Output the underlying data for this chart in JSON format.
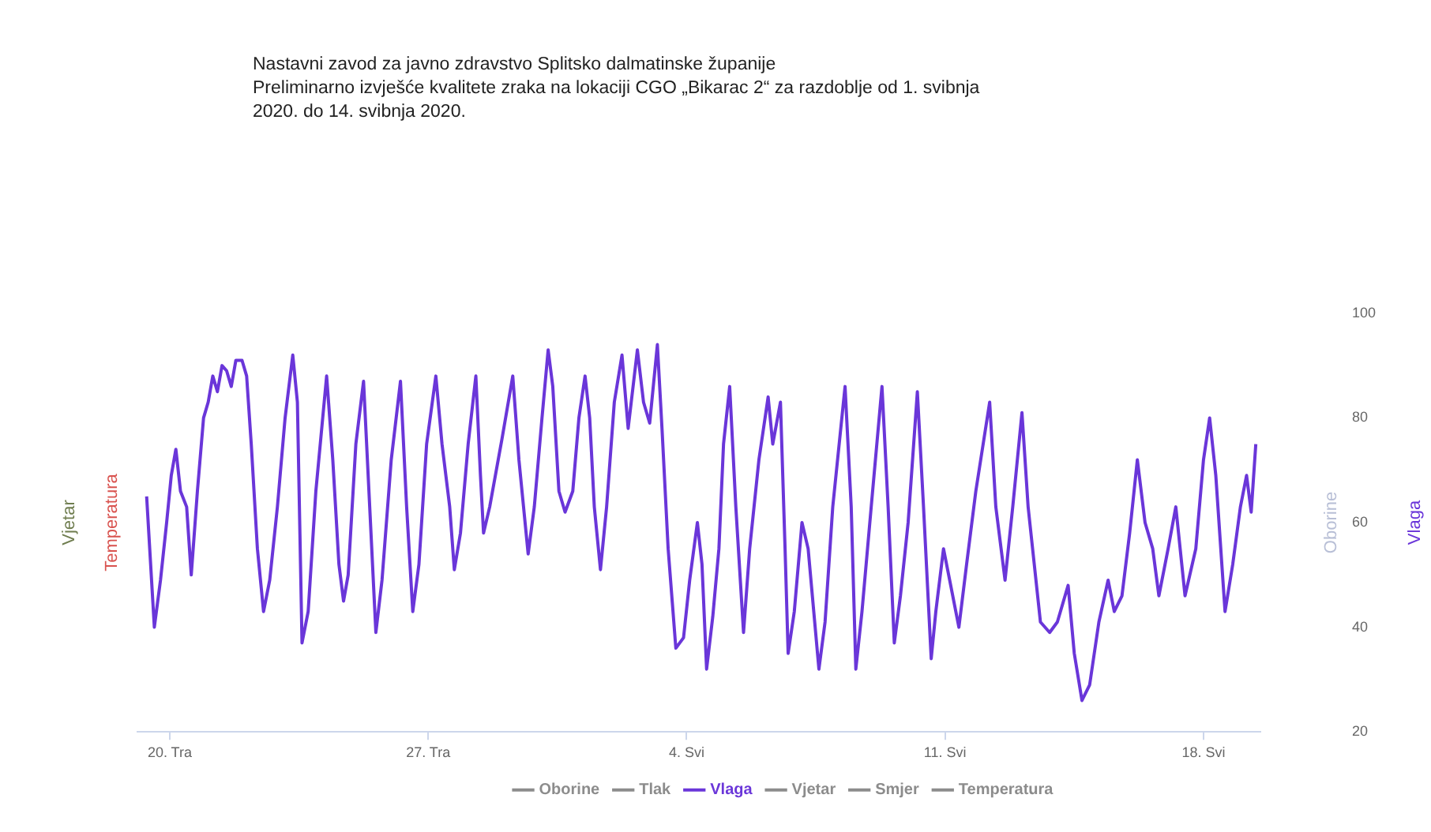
{
  "chart_data": {
    "type": "line",
    "title": "Nastavni zavod  za javno zdravstvo Splitsko dalmatinske županije",
    "subtitle": "Preliminarno izvješće kvalitete zraka na lokaciji CGO „Bikarac 2“  za razdoblje od  1. svibnja 2020. do 14. svibnja 2020.",
    "ylabel": "Temperatura",
    "y2label": "Vlaga",
    "annotations": [
      "Vjetar",
      "Oborine"
    ],
    "xlim": [
      "2020-04-19T03:00",
      "2020-05-19T13:00"
    ],
    "xticks": [
      {
        "value": "2020-04-20",
        "label": "20. Tra"
      },
      {
        "value": "2020-04-27",
        "label": "27. Tra"
      },
      {
        "value": "2020-05-04",
        "label": "4. Svi"
      },
      {
        "value": "2020-05-11",
        "label": "11. Svi"
      },
      {
        "value": "2020-05-18",
        "label": "18. Svi"
      }
    ],
    "y2lim": [
      20,
      100
    ],
    "y2ticks": [
      20,
      40,
      60,
      80,
      100
    ],
    "grid": false,
    "legend": "bottom",
    "marker": "none",
    "line_style": "solid",
    "series": [
      {
        "name": "Oborine",
        "color": "#8c8c8c"
      },
      {
        "name": "Tlak",
        "color": "#8c8c8c"
      },
      {
        "name": "Vlaga",
        "color": "#6a36d9",
        "axis": "y2",
        "x": [
          "2020-04-19T09:00",
          "2020-04-19T14:00",
          "2020-04-19T18:00",
          "2020-04-19T22:00",
          "2020-04-20T01:00",
          "2020-04-20T04:00",
          "2020-04-20T07:00",
          "2020-04-20T11:00",
          "2020-04-20T14:00",
          "2020-04-20T18:00",
          "2020-04-20T22:00",
          "2020-04-21T01:00",
          "2020-04-21T04:00",
          "2020-04-21T07:00",
          "2020-04-21T10:00",
          "2020-04-21T13:00",
          "2020-04-21T16:00",
          "2020-04-21T19:00",
          "2020-04-21T23:00",
          "2020-04-22T02:00",
          "2020-04-22T05:00",
          "2020-04-22T09:00",
          "2020-04-22T13:00",
          "2020-04-22T17:00",
          "2020-04-22T22:00",
          "2020-04-23T03:00",
          "2020-04-23T08:00",
          "2020-04-23T11:00",
          "2020-04-23T14:00",
          "2020-04-23T18:00",
          "2020-04-23T23:00",
          "2020-04-24T06:00",
          "2020-04-24T10:00",
          "2020-04-24T14:00",
          "2020-04-24T17:00",
          "2020-04-24T20:00",
          "2020-04-25T01:00",
          "2020-04-25T06:00",
          "2020-04-25T10:00",
          "2020-04-25T14:00",
          "2020-04-25T18:00",
          "2020-04-26T00:00",
          "2020-04-26T06:00",
          "2020-04-26T10:00",
          "2020-04-26T14:00",
          "2020-04-26T18:00",
          "2020-04-26T23:00",
          "2020-04-27T05:00",
          "2020-04-27T09:00",
          "2020-04-27T14:00",
          "2020-04-27T17:00",
          "2020-04-27T21:00",
          "2020-04-28T02:00",
          "2020-04-28T07:00",
          "2020-04-28T10:00",
          "2020-04-28T12:00",
          "2020-04-28T16:00",
          "2020-04-29T00:00",
          "2020-04-29T07:00",
          "2020-04-29T11:00",
          "2020-04-29T14:00",
          "2020-04-29T17:00",
          "2020-04-29T21:00",
          "2020-04-30T02:00",
          "2020-04-30T06:00",
          "2020-04-30T09:00",
          "2020-04-30T13:00",
          "2020-04-30T17:00",
          "2020-04-30T22:00",
          "2020-05-01T02:00",
          "2020-05-01T06:00",
          "2020-05-01T09:00",
          "2020-05-01T12:00",
          "2020-05-01T16:00",
          "2020-05-01T20:00",
          "2020-05-02T01:00",
          "2020-05-02T06:00",
          "2020-05-02T10:00",
          "2020-05-02T16:00",
          "2020-05-02T20:00",
          "2020-05-03T00:00",
          "2020-05-03T05:00",
          "2020-05-03T08:00",
          "2020-05-03T12:00",
          "2020-05-03T17:00",
          "2020-05-03T22:00",
          "2020-05-04T02:00",
          "2020-05-04T07:00",
          "2020-05-04T10:00",
          "2020-05-04T13:00",
          "2020-05-04T17:00",
          "2020-05-04T21:00",
          "2020-05-05T00:00",
          "2020-05-05T04:00",
          "2020-05-05T08:00",
          "2020-05-05T13:00",
          "2020-05-05T17:00",
          "2020-05-05T23:00",
          "2020-05-06T05:00",
          "2020-05-06T08:00",
          "2020-05-06T13:00",
          "2020-05-06T16:00",
          "2020-05-06T18:00",
          "2020-05-06T22:00",
          "2020-05-07T03:00",
          "2020-05-07T07:00",
          "2020-05-07T14:00",
          "2020-05-07T18:00",
          "2020-05-07T23:00",
          "2020-05-08T07:00",
          "2020-05-08T11:00",
          "2020-05-08T14:00",
          "2020-05-08T18:00",
          "2020-05-09T00:00",
          "2020-05-09T07:00",
          "2020-05-09T11:00",
          "2020-05-09T15:00",
          "2020-05-09T19:00",
          "2020-05-10T00:00",
          "2020-05-10T06:00",
          "2020-05-10T10:00",
          "2020-05-10T15:00",
          "2020-05-10T18:00",
          "2020-05-10T23:00",
          "2020-05-11T03:00",
          "2020-05-11T09:00",
          "2020-05-11T14:00",
          "2020-05-11T20:00",
          "2020-05-12T05:00",
          "2020-05-12T09:00",
          "2020-05-12T15:00",
          "2020-05-12T20:00",
          "2020-05-13T02:00",
          "2020-05-13T06:00",
          "2020-05-13T14:00",
          "2020-05-13T20:00",
          "2020-05-14T01:00",
          "2020-05-14T08:00",
          "2020-05-14T12:00",
          "2020-05-14T17:00",
          "2020-05-14T22:00",
          "2020-05-15T04:00",
          "2020-05-15T10:00",
          "2020-05-15T14:00",
          "2020-05-15T19:00",
          "2020-05-16T00:00",
          "2020-05-16T05:00",
          "2020-05-16T10:00",
          "2020-05-16T15:00",
          "2020-05-16T19:00",
          "2020-05-17T01:00",
          "2020-05-17T06:00",
          "2020-05-17T12:00",
          "2020-05-17T19:00",
          "2020-05-18T00:00",
          "2020-05-18T04:00",
          "2020-05-18T08:00",
          "2020-05-18T14:00",
          "2020-05-18T19:00",
          "2020-05-19T00:00",
          "2020-05-19T04:00",
          "2020-05-19T07:00",
          "2020-05-19T10:00"
        ],
        "values": [
          65,
          40,
          49,
          60,
          69,
          74,
          66,
          63,
          50,
          66,
          80,
          83,
          88,
          85,
          90,
          89,
          86,
          91,
          91,
          88,
          75,
          55,
          43,
          49,
          63,
          80,
          92,
          83,
          37,
          43,
          66,
          88,
          72,
          52,
          45,
          50,
          75,
          87,
          63,
          39,
          49,
          72,
          87,
          63,
          43,
          52,
          75,
          88,
          75,
          63,
          51,
          58,
          75,
          88,
          69,
          58,
          63,
          76,
          88,
          72,
          63,
          54,
          63,
          80,
          93,
          86,
          66,
          62,
          66,
          80,
          88,
          80,
          63,
          51,
          63,
          83,
          92,
          78,
          93,
          83,
          79,
          94,
          78,
          55,
          36,
          38,
          49,
          60,
          52,
          32,
          42,
          55,
          75,
          86,
          63,
          39,
          55,
          72,
          84,
          75,
          83,
          55,
          35,
          43,
          60,
          55,
          32,
          41,
          63,
          86,
          63,
          32,
          43,
          63,
          86,
          63,
          37,
          46,
          60,
          85,
          63,
          34,
          43,
          55,
          49,
          40,
          52,
          66,
          83,
          63,
          49,
          63,
          81,
          63,
          41,
          39,
          41,
          48,
          35,
          26,
          29,
          41,
          49,
          43,
          46,
          58,
          72,
          60,
          55,
          46,
          55,
          63,
          46,
          55,
          72,
          80,
          69,
          43,
          52,
          63,
          69,
          62,
          75
        ]
      },
      {
        "name": "Vjetar",
        "color": "#8c8c8c"
      },
      {
        "name": "Smjer",
        "color": "#8c8c8c"
      },
      {
        "name": "Temperatura",
        "color": "#8c8c8c"
      }
    ]
  }
}
